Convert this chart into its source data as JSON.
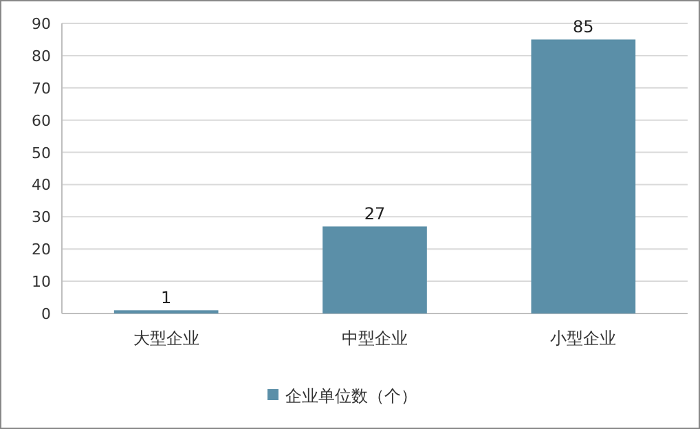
{
  "chart_data": {
    "type": "bar",
    "categories": [
      "大型企业",
      "中型企业",
      "小型企业"
    ],
    "series": [
      {
        "name": "企业单位数（个）",
        "color": "#5b8fa8",
        "values": [
          1,
          27,
          85
        ]
      }
    ],
    "ylim": [
      0,
      90
    ],
    "yticks": [
      0,
      10,
      20,
      30,
      40,
      50,
      60,
      70,
      80,
      90
    ],
    "grid": "y",
    "legend": "bottom",
    "data_labels": true
  }
}
